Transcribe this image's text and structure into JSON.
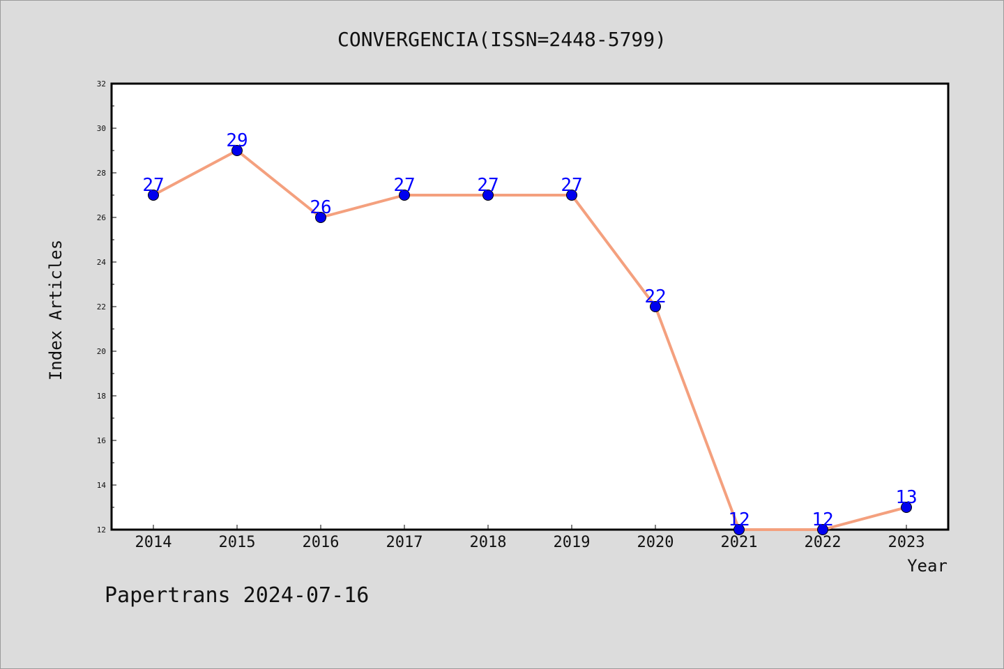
{
  "chart_data": {
    "type": "line",
    "title": "CONVERGENCIA(ISSN=2448-5799)",
    "xlabel": "Year",
    "ylabel": "Index Articles",
    "categories": [
      "2014",
      "2015",
      "2016",
      "2017",
      "2018",
      "2019",
      "2020",
      "2021",
      "2022",
      "2023"
    ],
    "values": [
      27,
      29,
      26,
      27,
      27,
      27,
      22,
      12,
      12,
      13
    ],
    "ylim": [
      12,
      32
    ],
    "yticks": [
      "12",
      "14",
      "16",
      "18",
      "20",
      "22",
      "24",
      "26",
      "28",
      "30",
      "32"
    ],
    "grid": false,
    "line_color": "#f4a07e",
    "marker_color": "#0000ee",
    "label_color": "#0000ff"
  },
  "footer": "Papertrans 2024-07-16"
}
